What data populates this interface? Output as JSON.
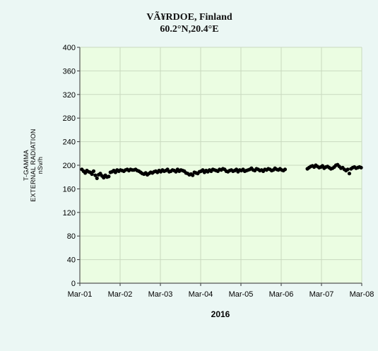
{
  "chart_data": {
    "type": "scatter",
    "title": "VÃ¥RDOE, Finland",
    "subtitle": "60.2°N,20.4°E",
    "ylabel_lines": [
      "T-GAMMA",
      "EXTERNAL RADIATION",
      "nSv/h"
    ],
    "xlabel": "2016",
    "ylim": [
      0,
      400
    ],
    "yticks": [
      0,
      40,
      80,
      120,
      160,
      200,
      240,
      280,
      320,
      360,
      400
    ],
    "xlim": [
      0,
      7
    ],
    "xtick_labels": [
      "Mar-01",
      "Mar-02",
      "Mar-03",
      "Mar-04",
      "Mar-05",
      "Mar-06",
      "Mar-07",
      "Mar-08"
    ],
    "grid": true,
    "colors": {
      "plot_bg": "#ebfde2",
      "marker": "#000000",
      "grid": "#c9d9bf",
      "page_bg": "#ebf7f4"
    },
    "segments": [
      {
        "x_start": 0.05,
        "x_step": 0.0417,
        "y": [
          193,
          190,
          187,
          191,
          189,
          188,
          185,
          190,
          183,
          178,
          184,
          186,
          182,
          179,
          183,
          180,
          181,
          188,
          189,
          191,
          188,
          192,
          190,
          192,
          191,
          190,
          192,
          193,
          191,
          193,
          192,
          192,
          193,
          191,
          190,
          188,
          186,
          185,
          187,
          184,
          186,
          188,
          187,
          189,
          190,
          188,
          191,
          189,
          192,
          190,
          191,
          193,
          189,
          190,
          192,
          191,
          189,
          193,
          190,
          192,
          191,
          190,
          187,
          186,
          184,
          185,
          183,
          188,
          187,
          186,
          189,
          190,
          192,
          188,
          191,
          189,
          192,
          190,
          193,
          192,
          191,
          190,
          193,
          192,
          194,
          193,
          190,
          189,
          191,
          192,
          190,
          191,
          193,
          189,
          192,
          191,
          193,
          190,
          191,
          192,
          193,
          195,
          192,
          191,
          194,
          193,
          191,
          192,
          190,
          193,
          192,
          194,
          193,
          191,
          192,
          195,
          193,
          192,
          194,
          192,
          191,
          193
        ]
      },
      {
        "x_start": 5.65,
        "x_step": 0.0417,
        "y": [
          194,
          196,
          198,
          199,
          197,
          200,
          198,
          196,
          197,
          199,
          195,
          197,
          198,
          196,
          194,
          195,
          197,
          200,
          201,
          198,
          195,
          196,
          193,
          191,
          193,
          186,
          194,
          196,
          197,
          195,
          196,
          197,
          196,
          195,
          193
        ]
      }
    ]
  }
}
